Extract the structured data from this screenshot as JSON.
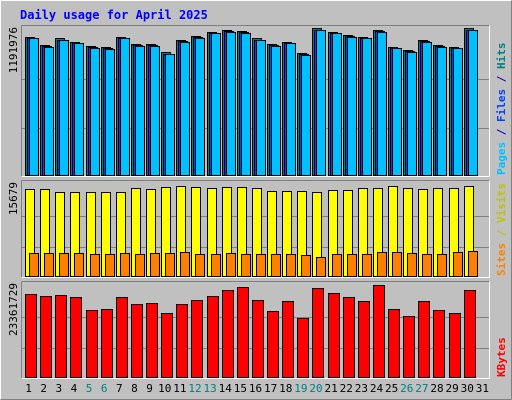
{
  "chart_data": {
    "type": "bar",
    "title": "Daily usage for April 2025",
    "categories": [
      "1",
      "2",
      "3",
      "4",
      "5",
      "6",
      "7",
      "8",
      "9",
      "10",
      "11",
      "12",
      "13",
      "14",
      "15",
      "16",
      "17",
      "18",
      "19",
      "20",
      "21",
      "22",
      "23",
      "24",
      "25",
      "26",
      "27",
      "28",
      "29",
      "30",
      "31"
    ],
    "weekend_days": [
      5,
      6,
      12,
      13,
      19,
      20,
      26,
      27
    ],
    "panels": [
      {
        "name": "hits-files-pages",
        "axis_max_label": "1191976",
        "ymax": 1191976,
        "right_label_parts": [
          {
            "text": "Pages",
            "color": "#00c0ff"
          },
          {
            "text": " / ",
            "color": "#0000c0"
          },
          {
            "text": "Files",
            "color": "#0040ff"
          },
          {
            "text": " / ",
            "color": "#0000c0"
          },
          {
            "text": "Hits",
            "color": "#008080"
          }
        ],
        "series": [
          {
            "name": "Hits",
            "color": "#008080",
            "values": [
              1146000,
              1078000,
              1132000,
              1105000,
              1070000,
              1060000,
              1146000,
              1084000,
              1084000,
              1016000,
              1119000,
              1153000,
              1187000,
              1200000,
              1193000,
              1132000,
              1084000,
              1105000,
              1010000,
              1214000,
              1187000,
              1160000,
              1146000,
              1200000,
              1064000,
              1037000,
              1119000,
              1078000,
              1064000,
              1214000,
              0
            ]
          },
          {
            "name": "Files",
            "color": "#0040ff",
            "values": [
              1135000,
              1068000,
              1122000,
              1095000,
              1060000,
              1050000,
              1136000,
              1074000,
              1074000,
              1006000,
              1109000,
              1143000,
              1177000,
              1190000,
              1183000,
              1122000,
              1074000,
              1095000,
              1000000,
              1204000,
              1177000,
              1150000,
              1136000,
              1190000,
              1054000,
              1027000,
              1109000,
              1068000,
              1054000,
              1204000,
              0
            ]
          },
          {
            "name": "Pages",
            "color": "#00c0ff",
            "values": [
              1131000,
              1062000,
              1117000,
              1090000,
              1056000,
              1046000,
              1131000,
              1070000,
              1070000,
              1002000,
              1104000,
              1138000,
              1172000,
              1186000,
              1179000,
              1117000,
              1070000,
              1090000,
              996000,
              1200000,
              1172000,
              1145000,
              1131000,
              1186000,
              1049000,
              1022000,
              1104000,
              1062000,
              1049000,
              1200000,
              0
            ]
          }
        ]
      },
      {
        "name": "visits-sites",
        "axis_max_label": "15679",
        "ymax": 15679,
        "right_label_parts": [
          {
            "text": "Sites",
            "color": "#ff8000"
          },
          {
            "text": " / ",
            "color": "#c0c000"
          },
          {
            "text": "Visits",
            "color": "#c0c000"
          }
        ],
        "series": [
          {
            "name": "Visits",
            "color": "#ffff00",
            "values": [
              15150,
              15150,
              14730,
              14730,
              14730,
              14730,
              14730,
              15360,
              15150,
              15570,
              15680,
              15570,
              15360,
              15570,
              15470,
              15260,
              14830,
              14830,
              14830,
              14620,
              14940,
              14940,
              15260,
              15360,
              15680,
              15260,
              15150,
              15260,
              15360,
              15680,
              0
            ]
          },
          {
            "name": "Sites",
            "color": "#ff8000",
            "values": [
              4180,
              4180,
              4080,
              4080,
              3880,
              3880,
              4080,
              3980,
              4080,
              4080,
              4280,
              3880,
              3880,
              4080,
              3980,
              3880,
              3880,
              3880,
              3780,
              3470,
              3880,
              3880,
              3880,
              4280,
              4280,
              4080,
              3880,
              3980,
              4280,
              4490,
              0
            ]
          }
        ]
      },
      {
        "name": "kbytes",
        "axis_max_label": "23361729",
        "ymax": 23361729,
        "right_label_parts": [
          {
            "text": "KBytes",
            "color": "#ff0000"
          }
        ],
        "series": [
          {
            "name": "KBytes",
            "color": "#ff0000",
            "values": [
              21600000,
              21020000,
              21310000,
              20900000,
              17430000,
              17760000,
              20900000,
              19110000,
              19300000,
              16770000,
              19110000,
              20020000,
              20990000,
              22550000,
              23360000,
              19930000,
              17140000,
              19710000,
              15460000,
              23110000,
              21840000,
              20770000,
              19710000,
              23940000,
              17820000,
              15860000,
              19820000,
              17530000,
              16680000,
              22670000,
              0
            ]
          }
        ]
      }
    ]
  }
}
